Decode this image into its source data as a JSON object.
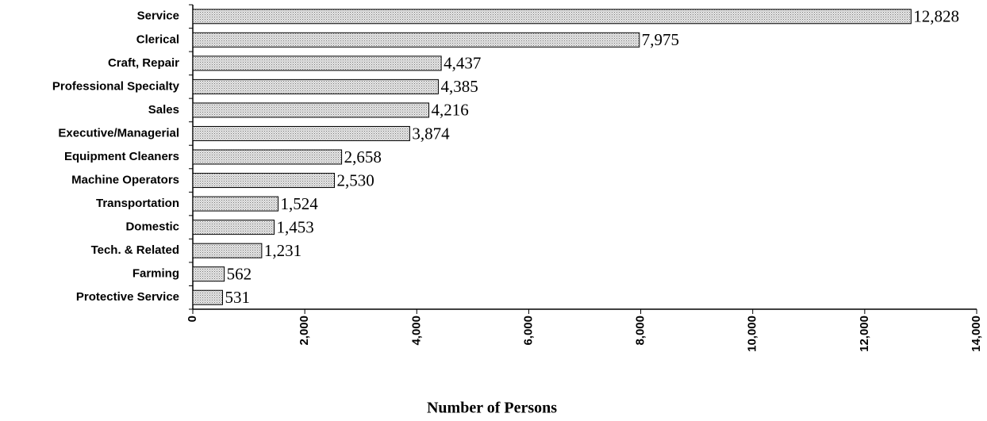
{
  "chart_data": {
    "type": "bar",
    "orientation": "horizontal",
    "x_label": "Number of Persons",
    "categories": [
      "Service",
      "Clerical",
      "Craft, Repair",
      "Professional Specialty",
      "Sales",
      "Executive/Managerial",
      "Equipment Cleaners",
      "Machine Operators",
      "Transportation",
      "Domestic",
      "Tech. & Related",
      "Farming",
      "Protective Service"
    ],
    "values": [
      12828,
      7975,
      4437,
      4385,
      4216,
      3874,
      2658,
      2530,
      1524,
      1453,
      1231,
      562,
      531
    ],
    "value_labels": [
      "12,828",
      "7,975",
      "4,437",
      "4,385",
      "4,216",
      "3,874",
      "2,658",
      "2,530",
      "1,524",
      "1,453",
      "1,231",
      "562",
      "531"
    ],
    "color": "#d0d0d0",
    "xlim": [
      0,
      14000
    ],
    "xticks": [
      0,
      {
        "value": 2000,
        "label": "2,000"
      },
      {
        "value": 4000,
        "label": "4,000"
      },
      {
        "value": 6000,
        "label": "6,000"
      },
      {
        "value": 8000,
        "label": "8,000"
      },
      {
        "value": 10000,
        "label": "10,000"
      },
      {
        "value": 12000,
        "label": "12,000"
      },
      {
        "value": 14000,
        "label": "14,000"
      }
    ],
    "grid": false
  }
}
